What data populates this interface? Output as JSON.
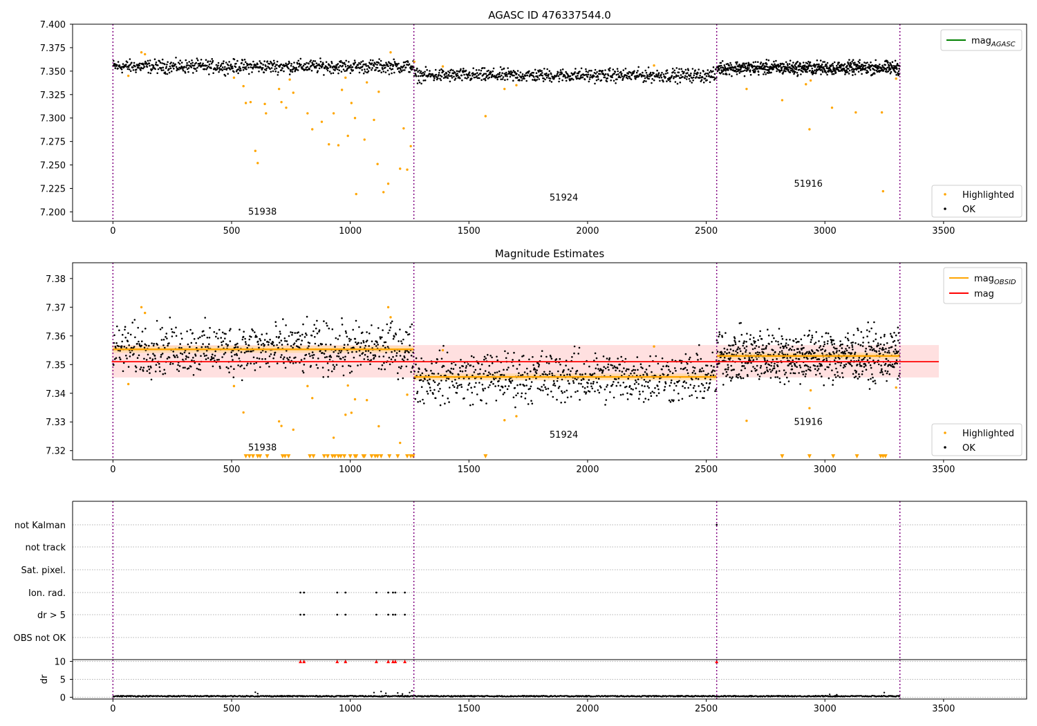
{
  "chart_data": [
    {
      "type": "scatter",
      "title": "AGASC ID 476337544.0",
      "xlabel": "",
      "ylabel": "",
      "xlim": [
        -170,
        3850
      ],
      "ylim": [
        7.19,
        7.4
      ],
      "xticks": [
        0,
        500,
        1000,
        1500,
        2000,
        2500,
        3000,
        3500
      ],
      "yticks": [
        7.2,
        7.225,
        7.25,
        7.275,
        7.3,
        7.325,
        7.35,
        7.375,
        7.4
      ],
      "ytick_labels": [
        "7.200",
        "7.225",
        "7.250",
        "7.275",
        "7.300",
        "7.325",
        "7.350",
        "7.375",
        "7.400"
      ],
      "obsid_boundaries": [
        0,
        1268,
        2544,
        3316
      ],
      "obsid_labels": [
        {
          "text": "51938",
          "x": 630,
          "y": 7.197
        },
        {
          "text": "51924",
          "x": 1900,
          "y": 7.212
        },
        {
          "text": "51916",
          "x": 2930,
          "y": 7.227
        }
      ],
      "segments": [
        {
          "x": [
            0,
            1268
          ],
          "level": 7.355,
          "spread": 0.0035
        },
        {
          "x": [
            1268,
            2544
          ],
          "level": 7.3455,
          "spread": 0.0035
        },
        {
          "x": [
            2544,
            3316
          ],
          "level": 7.3535,
          "spread": 0.0035
        }
      ],
      "highlighted": {
        "x": [
          65,
          120,
          135,
          510,
          550,
          560,
          580,
          600,
          610,
          640,
          645,
          700,
          710,
          730,
          745,
          760,
          820,
          840,
          880,
          910,
          930,
          950,
          965,
          980,
          990,
          1005,
          1020,
          1025,
          1060,
          1070,
          1100,
          1115,
          1120,
          1140,
          1160,
          1170,
          1210,
          1225,
          1240,
          1255,
          1270,
          1390,
          1570,
          1650,
          1700,
          2280,
          2670,
          2820,
          2920,
          2935,
          2940,
          3030,
          3130,
          3240,
          3245,
          3300
        ],
        "y": [
          7.345,
          7.37,
          7.368,
          7.343,
          7.334,
          7.316,
          7.317,
          7.265,
          7.252,
          7.315,
          7.305,
          7.331,
          7.317,
          7.311,
          7.341,
          7.327,
          7.305,
          7.288,
          7.296,
          7.272,
          7.305,
          7.271,
          7.33,
          7.343,
          7.281,
          7.316,
          7.3,
          7.219,
          7.277,
          7.338,
          7.298,
          7.251,
          7.328,
          7.221,
          7.23,
          7.37,
          7.246,
          7.289,
          7.245,
          7.27,
          7.36,
          7.355,
          7.302,
          7.331,
          7.335,
          7.356,
          7.331,
          7.319,
          7.336,
          7.288,
          7.34,
          7.311,
          7.306,
          7.306,
          7.222,
          7.342
        ],
        "color": "#ffa500"
      },
      "ok": {
        "color": "#000000",
        "band_rule": "within 0.009 of segment level"
      },
      "legend_top": [
        {
          "label": "mag",
          "sub": "AGASC",
          "color": "#008000",
          "kind": "line"
        }
      ],
      "legend_bottom": [
        {
          "label": "Highlighted",
          "color": "#ffa500",
          "kind": "dot"
        },
        {
          "label": "OK",
          "color": "#000000",
          "kind": "dot"
        }
      ],
      "legend_placement": [
        "upper right",
        "lower right"
      ]
    },
    {
      "type": "scatter",
      "title": "Magnitude Estimates",
      "xlim": [
        -170,
        3850
      ],
      "ylim": [
        7.3168,
        7.3855
      ],
      "xticks": [
        0,
        500,
        1000,
        1500,
        2000,
        2500,
        3000,
        3500
      ],
      "yticks": [
        7.32,
        7.33,
        7.34,
        7.35,
        7.36,
        7.37,
        7.38
      ],
      "ytick_labels": [
        "7.32",
        "7.33",
        "7.34",
        "7.35",
        "7.36",
        "7.37",
        "7.38"
      ],
      "obsid_boundaries": [
        0,
        1268,
        2544,
        3316
      ],
      "obsid_labels": [
        {
          "text": "51938",
          "x": 630,
          "y": 7.32
        },
        {
          "text": "51924",
          "x": 1900,
          "y": 7.3245
        },
        {
          "text": "51916",
          "x": 2930,
          "y": 7.329
        }
      ],
      "mag": {
        "value": 7.351,
        "band": [
          7.3455,
          7.3568
        ],
        "x": [
          -5,
          3480
        ],
        "color": "#ff0000",
        "band_color": "#ffd8d8"
      },
      "segments": [
        {
          "x": [
            0,
            1268
          ],
          "level": 7.3553,
          "spread": 0.0035
        },
        {
          "x": [
            1268,
            2544
          ],
          "level": 7.3457,
          "spread": 0.0035
        },
        {
          "x": [
            2544,
            3316
          ],
          "level": 7.353,
          "spread": 0.0035
        }
      ],
      "highlighted": {
        "x": [
          65,
          120,
          135,
          510,
          550,
          700,
          710,
          760,
          820,
          840,
          930,
          980,
          990,
          1005,
          1020,
          1070,
          1120,
          1160,
          1170,
          1210,
          1240,
          1390,
          1650,
          1700,
          2280,
          2670,
          2935,
          2940,
          3300
        ],
        "y": [
          7.3432,
          7.37,
          7.368,
          7.3425,
          7.3333,
          7.3302,
          7.3286,
          7.3273,
          7.3425,
          7.3383,
          7.3245,
          7.3325,
          7.3427,
          7.3332,
          7.3379,
          7.3376,
          7.3285,
          7.37,
          7.3665,
          7.3227,
          7.3395,
          7.355,
          7.3306,
          7.332,
          7.3563,
          7.3304,
          7.3348,
          7.341,
          7.342
        ],
        "color": "#ffa500"
      },
      "below_range_markers": {
        "x": [
          560,
          575,
          590,
          610,
          620,
          650,
          715,
          725,
          740,
          830,
          845,
          890,
          905,
          925,
          935,
          950,
          960,
          975,
          1000,
          1020,
          1025,
          1055,
          1060,
          1090,
          1105,
          1115,
          1130,
          1165,
          1200,
          1240,
          1255,
          1265,
          1570,
          2820,
          2935,
          3035,
          3135,
          3235,
          3245,
          3255
        ],
        "color": "#ffa500"
      },
      "ok": {
        "color": "#000000",
        "band_rule": "within 0.012 of segment level"
      },
      "legend_top": [
        {
          "label": "mag",
          "sub": "OBSID",
          "color": "#ffa500",
          "kind": "line"
        },
        {
          "label": "mag",
          "sub": "",
          "color": "#ff0000",
          "kind": "line"
        }
      ],
      "legend_bottom": [
        {
          "label": "Highlighted",
          "color": "#ffa500",
          "kind": "dot"
        },
        {
          "label": "OK",
          "color": "#000000",
          "kind": "dot"
        }
      ],
      "legend_placement": [
        "upper right",
        "lower right"
      ]
    },
    {
      "type": "scatter",
      "title": "",
      "xlim": [
        -170,
        3850
      ],
      "flag_rows": [
        "not Kalman",
        "not track",
        "Sat. pixel.",
        "Ion. rad.",
        "dr > 5",
        "OBS not OK"
      ],
      "obsid_boundaries": [
        0,
        1268,
        2544,
        3316
      ],
      "flags": {
        "not Kalman": [
          2544
        ],
        "not track": [],
        "Sat. pixel.": [],
        "Ion. rad.": [
          790,
          805,
          945,
          980,
          1110,
          1160,
          1180,
          1190,
          1230
        ],
        "dr > 5": [
          790,
          805,
          945,
          980,
          1110,
          1160,
          1180,
          1190,
          1230
        ],
        "OBS not OK": []
      },
      "grid": "dotted horizontal"
    },
    {
      "type": "scatter",
      "ylabel": "dr",
      "xlim": [
        -170,
        3850
      ],
      "ylim": [
        -0.5,
        10.5
      ],
      "xticks": [
        0,
        500,
        1000,
        1500,
        2000,
        2500,
        3000,
        3500
      ],
      "yticks": [
        0,
        5,
        10
      ],
      "ytick_labels": [
        "0",
        "5",
        "10"
      ],
      "obsid_boundaries": [
        0,
        1268,
        2544,
        3316
      ],
      "clipped_markers": {
        "x": [
          790,
          805,
          945,
          980,
          1110,
          1160,
          1180,
          1190,
          1230,
          2544
        ],
        "value": 10,
        "color": "#ff0000"
      },
      "spikes": {
        "x": [
          600,
          610,
          1100,
          1130,
          1150,
          1200,
          1220,
          1250,
          1260,
          3020,
          3050,
          3250
        ],
        "y": [
          1.4,
          1.0,
          1.3,
          1.6,
          1.1,
          1.2,
          0.9,
          1.3,
          1.8,
          0.8,
          0.7,
          1.3
        ]
      },
      "grid": "dotted horizontal"
    }
  ]
}
